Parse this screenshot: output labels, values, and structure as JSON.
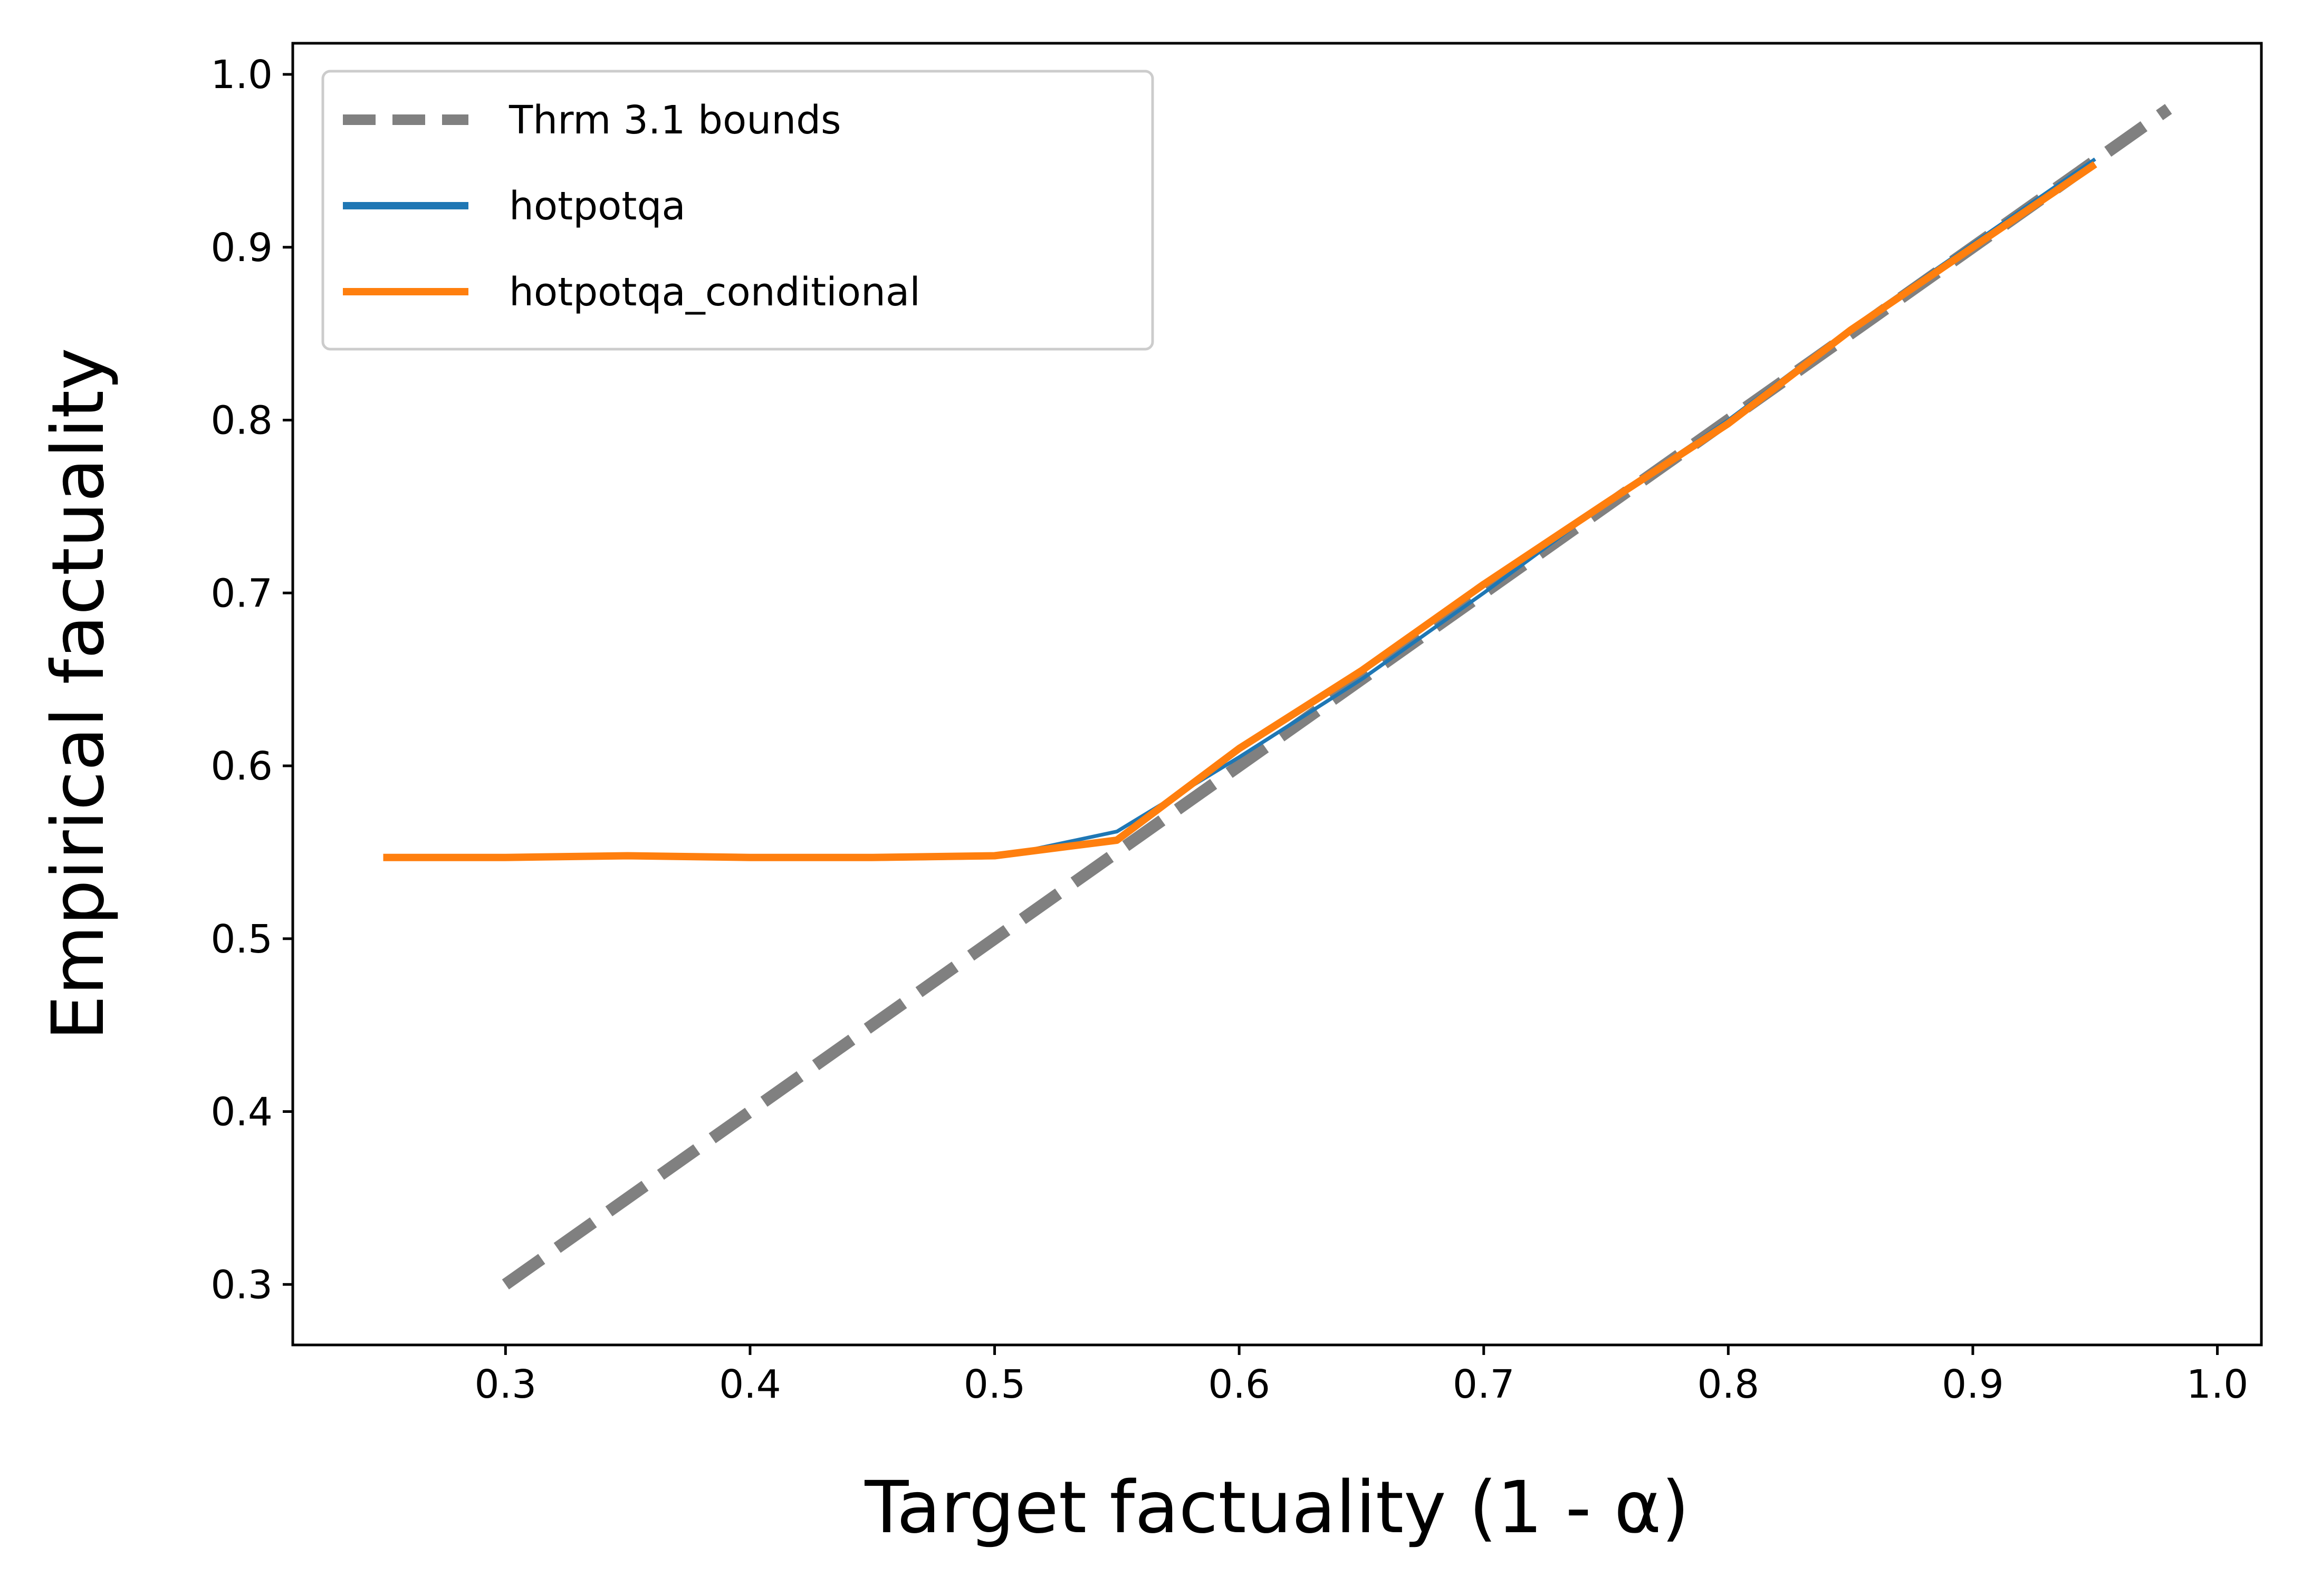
{
  "chart_data": {
    "type": "line",
    "title": "",
    "xlabel": "Target factuality (1 - α)",
    "ylabel": "Empirical factuality",
    "xlim": [
      0.213,
      1.018
    ],
    "ylim": [
      0.265,
      1.018
    ],
    "xticks": [
      0.3,
      0.4,
      0.5,
      0.6,
      0.7,
      0.8,
      0.9,
      1.0
    ],
    "yticks": [
      0.3,
      0.4,
      0.5,
      0.6,
      0.7,
      0.8,
      0.9,
      1.0
    ],
    "xtick_labels": [
      "0.3",
      "0.4",
      "0.5",
      "0.6",
      "0.7",
      "0.8",
      "0.9",
      "1.0"
    ],
    "ytick_labels": [
      "0.3",
      "0.4",
      "0.5",
      "0.6",
      "0.7",
      "0.8",
      "0.9",
      "1.0"
    ],
    "grid": false,
    "legend_position": "top-left",
    "series": [
      {
        "name": "Thrm 3.1 bounds",
        "color": "#808080",
        "style": "dashed",
        "x": [
          0.3,
          0.98
        ],
        "y": [
          0.3,
          0.98
        ]
      },
      {
        "name": "hotpotqa",
        "color": "#1f77b4",
        "style": "solid",
        "x": [
          0.25,
          0.3,
          0.35,
          0.4,
          0.45,
          0.5,
          0.55,
          0.6,
          0.65,
          0.7,
          0.75,
          0.8,
          0.85,
          0.9,
          0.95
        ],
        "y": [
          0.546,
          0.546,
          0.548,
          0.547,
          0.546,
          0.547,
          0.562,
          0.605,
          0.65,
          0.7,
          0.752,
          0.8,
          0.853,
          0.902,
          0.951
        ]
      },
      {
        "name": "hotpotqa_conditional",
        "color": "#ff7f0e",
        "style": "solid",
        "x": [
          0.25,
          0.3,
          0.35,
          0.4,
          0.45,
          0.5,
          0.55,
          0.6,
          0.65,
          0.7,
          0.75,
          0.8,
          0.85,
          0.9,
          0.95
        ],
        "y": [
          0.547,
          0.547,
          0.548,
          0.547,
          0.547,
          0.548,
          0.557,
          0.61,
          0.655,
          0.705,
          0.752,
          0.798,
          0.852,
          0.9,
          0.948
        ]
      }
    ]
  }
}
